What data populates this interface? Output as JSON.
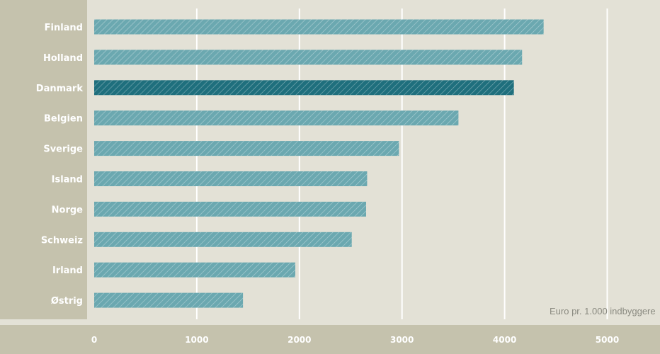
{
  "chart_data": {
    "type": "bar",
    "orientation": "horizontal",
    "categories": [
      "Finland",
      "Holland",
      "Danmark",
      "Belgien",
      "Sverige",
      "Island",
      "Norge",
      "Schweiz",
      "Irland",
      "Østrig"
    ],
    "values": [
      4380,
      4170,
      4090,
      3550,
      2970,
      2660,
      2650,
      2510,
      1960,
      1450
    ],
    "highlight": "Danmark",
    "xlim": [
      0,
      5500
    ],
    "xticks": [
      0,
      1000,
      2000,
      3000,
      4000,
      5000
    ],
    "unit_label": "Euro pr. 1.000 indbyggere",
    "grid": true,
    "colors": {
      "background": "#e3e1d6",
      "label_panel": "#c5c2ad",
      "bar": "#6ba8b0",
      "bar_highlight": "#1f6f7d",
      "text": "#ffffff",
      "unit_text": "#8a8a80"
    }
  }
}
